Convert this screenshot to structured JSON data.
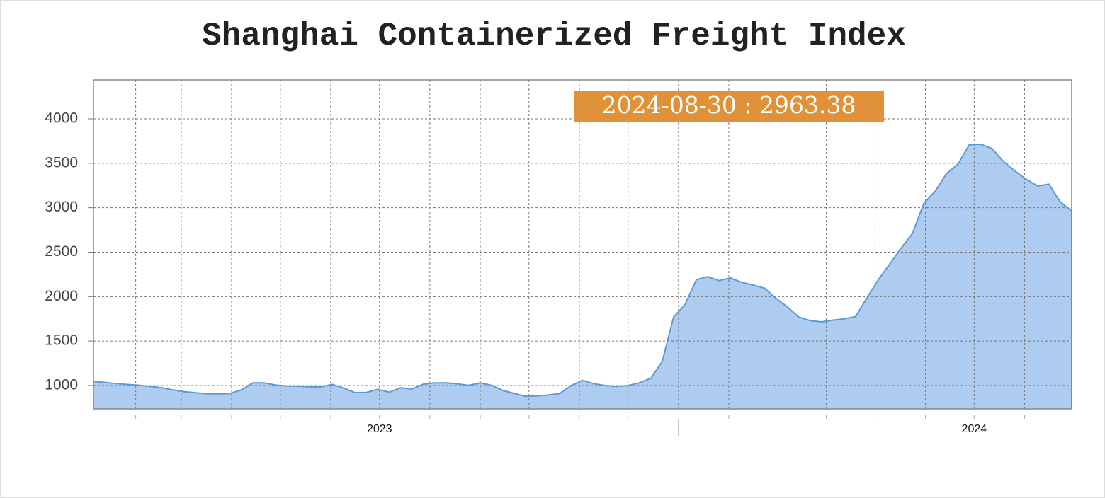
{
  "chart_data": {
    "type": "area",
    "title": "Shanghai Containerized Freight Index",
    "annotation": "2024-08-30 : 2963.38",
    "x": [
      "2023-01-06",
      "2023-01-13",
      "2023-01-20",
      "2023-01-27",
      "2023-02-03",
      "2023-02-10",
      "2023-02-17",
      "2023-02-24",
      "2023-03-03",
      "2023-03-10",
      "2023-03-17",
      "2023-03-24",
      "2023-03-31",
      "2023-04-07",
      "2023-04-14",
      "2023-04-21",
      "2023-04-28",
      "2023-05-05",
      "2023-05-12",
      "2023-05-19",
      "2023-05-26",
      "2023-06-02",
      "2023-06-09",
      "2023-06-16",
      "2023-06-23",
      "2023-06-30",
      "2023-07-07",
      "2023-07-14",
      "2023-07-21",
      "2023-07-28",
      "2023-08-04",
      "2023-08-11",
      "2023-08-18",
      "2023-08-25",
      "2023-09-01",
      "2023-09-08",
      "2023-09-15",
      "2023-09-22",
      "2023-09-29",
      "2023-10-06",
      "2023-10-13",
      "2023-10-20",
      "2023-10-27",
      "2023-11-03",
      "2023-11-10",
      "2023-11-17",
      "2023-11-24",
      "2023-12-01",
      "2023-12-08",
      "2023-12-15",
      "2023-12-22",
      "2023-12-29",
      "2024-01-05",
      "2024-01-12",
      "2024-01-19",
      "2024-01-26",
      "2024-02-02",
      "2024-02-09",
      "2024-02-16",
      "2024-02-23",
      "2024-03-01",
      "2024-03-08",
      "2024-03-15",
      "2024-03-22",
      "2024-03-29",
      "2024-04-05",
      "2024-04-12",
      "2024-04-19",
      "2024-04-26",
      "2024-05-03",
      "2024-05-10",
      "2024-05-17",
      "2024-05-24",
      "2024-05-31",
      "2024-06-07",
      "2024-06-14",
      "2024-06-21",
      "2024-06-28",
      "2024-07-05",
      "2024-07-12",
      "2024-07-19",
      "2024-07-26",
      "2024-08-02",
      "2024-08-09",
      "2024-08-16",
      "2024-08-23",
      "2024-08-30"
    ],
    "series": [
      {
        "color": "#5b9bd5",
        "fill": "#aecbf0",
        "values": [
          1045,
          1035,
          1022,
          1012,
          1003,
          990,
          975,
          950,
          930,
          918,
          907,
          905,
          910,
          950,
          1030,
          1030,
          1005,
          995,
          992,
          985,
          985,
          1012,
          970,
          920,
          922,
          958,
          925,
          975,
          960,
          1015,
          1030,
          1030,
          1018,
          1002,
          1030,
          1002,
          945,
          910,
          878,
          884,
          892,
          910,
          1000,
          1058,
          1020,
          1000,
          990,
          1000,
          1030,
          1082,
          1270,
          1770,
          1910,
          2190,
          2225,
          2180,
          2210,
          2160,
          2130,
          2095,
          1980,
          1885,
          1770,
          1730,
          1716,
          1735,
          1750,
          1775,
          1985,
          2190,
          2365,
          2545,
          2710,
          3050,
          3185,
          3385,
          3490,
          3710,
          3715,
          3665,
          3520,
          3415,
          3320,
          3245,
          3265,
          3065,
          2963.38
        ]
      }
    ],
    "xlim": [
      "2023-01-06",
      "2024-08-30"
    ],
    "xticks": [
      {
        "value": "2023-07-01",
        "label": "2023"
      },
      {
        "value": "2024-07-01",
        "label": "2024"
      }
    ],
    "xminor_ticks": [
      "2023-02-01",
      "2023-03-01",
      "2023-04-01",
      "2023-05-01",
      "2023-06-01",
      "2023-07-01",
      "2023-08-01",
      "2023-09-01",
      "2023-10-01",
      "2023-11-01",
      "2023-12-01",
      "2024-01-01",
      "2024-02-01",
      "2024-03-01",
      "2024-04-01",
      "2024-05-01",
      "2024-06-01",
      "2024-07-01",
      "2024-08-01"
    ],
    "ylim": [
      737,
      4438
    ],
    "yticks": [
      1000,
      1500,
      2000,
      2500,
      3000,
      3500,
      4000
    ],
    "grid": true
  }
}
